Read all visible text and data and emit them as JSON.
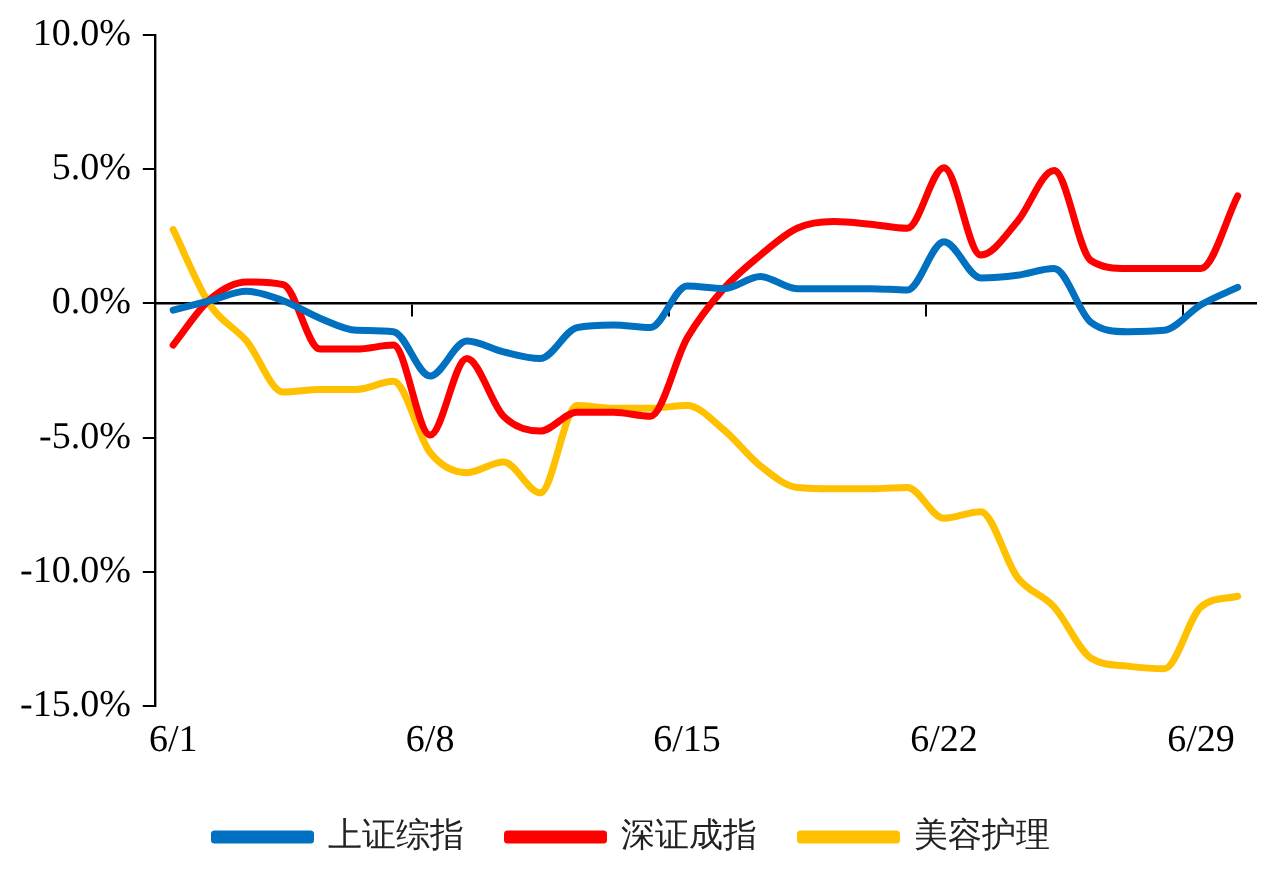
{
  "chart_data": {
    "type": "line",
    "categories": [
      "6/1",
      null,
      null,
      null,
      null,
      null,
      null,
      "6/8",
      null,
      null,
      null,
      null,
      null,
      null,
      "6/15",
      null,
      null,
      null,
      null,
      null,
      null,
      "6/22",
      null,
      null,
      null,
      null,
      null,
      null,
      "6/29",
      null
    ],
    "series": [
      {
        "name": "上证综指",
        "color": "#0070c0",
        "values": [
          -0.25,
          0.1,
          0.45,
          0.1,
          -0.55,
          -1.0,
          -1.05,
          -2.7,
          -1.4,
          -1.8,
          -2.05,
          -0.9,
          -0.8,
          -0.9,
          0.65,
          0.55,
          1.0,
          0.55,
          0.55,
          0.55,
          0.5,
          2.3,
          0.95,
          1.05,
          1.3,
          -0.7,
          -1.05,
          -1.0,
          -0.05,
          0.6
        ]
      },
      {
        "name": "深证成指",
        "color": "#ff0000",
        "values": [
          -1.55,
          0.15,
          0.8,
          0.7,
          -1.7,
          -1.7,
          -1.55,
          -4.9,
          -2.05,
          -4.2,
          -4.75,
          -4.05,
          -4.05,
          -4.2,
          -1.3,
          0.55,
          1.8,
          2.8,
          3.05,
          2.95,
          2.8,
          5.05,
          1.8,
          3.05,
          4.95,
          1.6,
          1.3,
          1.3,
          1.3,
          4.0
        ]
      },
      {
        "name": "美容护理",
        "color": "#ffc000",
        "values": [
          2.75,
          -0.05,
          -1.4,
          -3.3,
          -3.2,
          -3.2,
          -2.9,
          -5.55,
          -6.3,
          -5.9,
          -7.05,
          -3.8,
          -3.9,
          -3.9,
          -3.8,
          -4.7,
          -6.05,
          -6.85,
          -6.9,
          -6.9,
          -6.85,
          -8.0,
          -7.75,
          -10.2,
          -11.3,
          -13.2,
          -13.5,
          -13.6,
          -11.3,
          -10.9
        ]
      }
    ],
    "ylim": [
      -15,
      10
    ],
    "yticks": [
      {
        "value": -15,
        "label": "-15.0%"
      },
      {
        "value": -10,
        "label": "-10.0%"
      },
      {
        "value": -5,
        "label": "-5.0%"
      },
      {
        "value": 0,
        "label": "0.0%"
      },
      {
        "value": 5,
        "label": "5.0%"
      },
      {
        "value": 10,
        "label": "10.0%"
      }
    ],
    "legend": "bottom",
    "marker": "none",
    "line_style": "solid"
  }
}
